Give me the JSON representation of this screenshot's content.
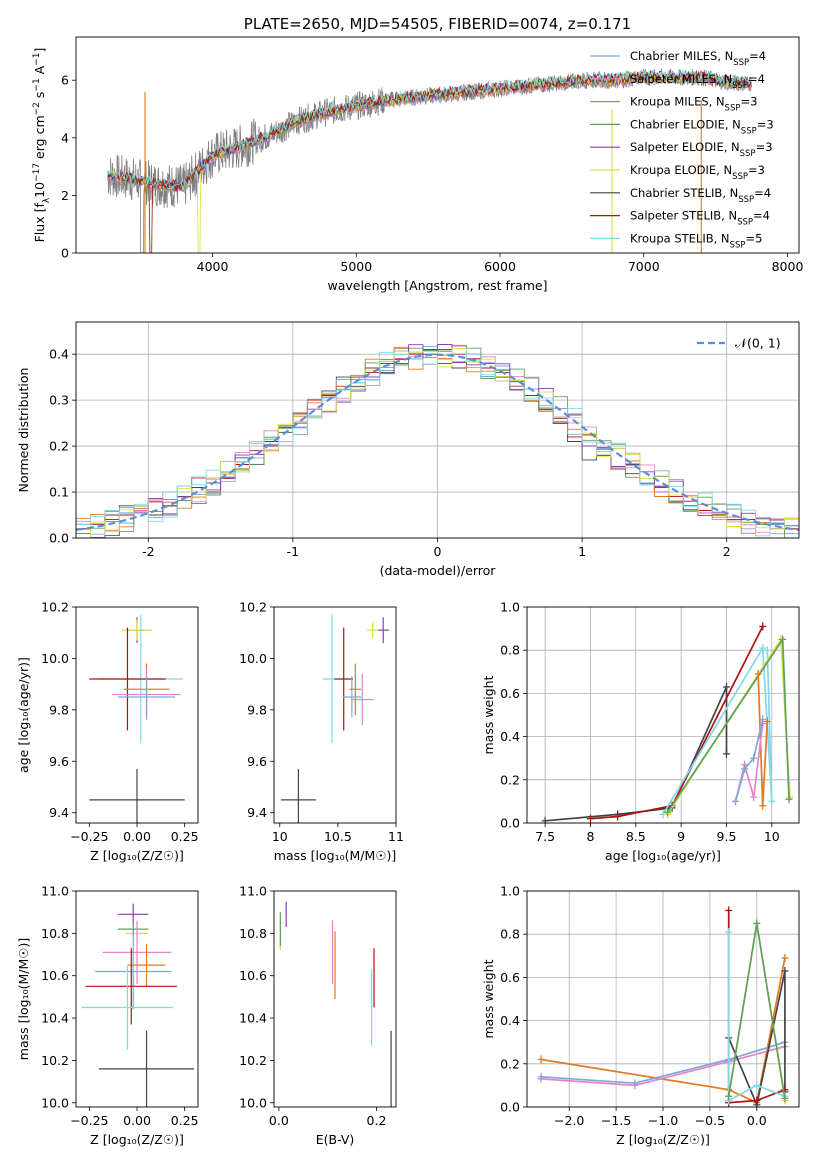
{
  "chart_data": [
    {
      "id": "spectrum",
      "type": "line",
      "title": "PLATE=2650, MJD=54505, FIBERID=0074, z=0.171",
      "xlabel": "wavelength [Angstrom, rest frame]",
      "ylabel_parts": [
        "Flux [f",
        "λ",
        "10",
        "−17",
        " erg cm",
        "−2",
        " s",
        "−1",
        " A",
        "−1",
        "]"
      ],
      "xlim": [
        3050,
        8080
      ],
      "ylim": [
        0,
        7.5
      ],
      "xticks": [
        4000,
        5000,
        6000,
        7000,
        8000
      ],
      "yticks": [
        0,
        2,
        4,
        6
      ],
      "xstart": 3270,
      "xend": 7750,
      "data_anchor": {
        "x": [
          3270,
          3400,
          3600,
          3800,
          4000,
          4200,
          4400,
          4600,
          4800,
          5000,
          5200,
          5400,
          5600,
          5800,
          6000,
          6200,
          6400,
          6600,
          6800,
          7000,
          7200,
          7400,
          7600,
          7750
        ],
        "y": [
          2.7,
          2.6,
          2.4,
          2.3,
          3.4,
          3.7,
          4.1,
          4.6,
          4.9,
          5.1,
          5.3,
          5.4,
          5.5,
          5.6,
          5.7,
          5.8,
          5.9,
          6.0,
          6.0,
          6.1,
          6.1,
          6.1,
          5.9,
          5.9
        ]
      },
      "legend_placement": "right",
      "legend": [
        {
          "text": "Chabrier MILES, N",
          "sub": "SSP",
          "tail": "=4",
          "color": "#7fa8d8"
        },
        {
          "text": "Salpeter MILES, N",
          "sub": "SSP",
          "tail": "=4",
          "color": "#e882c8"
        },
        {
          "text": "Kroupa MILES, N",
          "sub": "SSP",
          "tail": "=3",
          "color": "#e07a1f"
        },
        {
          "text": "Chabrier ELODIE, N",
          "sub": "SSP",
          "tail": "=3",
          "color": "#5fa060"
        },
        {
          "text": "Salpeter ELODIE, N",
          "sub": "SSP",
          "tail": "=3",
          "color": "#8a3fb0"
        },
        {
          "text": "Kroupa ELODIE, N",
          "sub": "SSP",
          "tail": "=3",
          "color": "#d8e040"
        },
        {
          "text": "Chabrier STELIB, N",
          "sub": "SSP",
          "tail": "=4",
          "color": "#444444"
        },
        {
          "text": "Salpeter STELIB, N",
          "sub": "SSP",
          "tail": "=4",
          "color": "#b01010"
        },
        {
          "text": "Kroupa STELIB, N",
          "sub": "SSP",
          "tail": "=5",
          "color": "#80d8e8"
        }
      ]
    },
    {
      "id": "residuals",
      "type": "step",
      "xlabel": "(data-model)/error",
      "ylabel": "Normed distribution",
      "xlim": [
        -2.5,
        2.5
      ],
      "ylim": [
        0,
        0.47
      ],
      "xticks": [
        -2,
        -1,
        0,
        1,
        2
      ],
      "yticks": [
        0.0,
        0.1,
        0.2,
        0.3,
        0.4
      ],
      "grid": true,
      "legend": "𝒩(0, 1)",
      "legend_placement": "top-right",
      "gauss_color": "#5a8fd8",
      "bin_width": 0.1,
      "bin_start": -2.5,
      "series": [
        {
          "color": "#444444",
          "values": [
            0.02,
            0.03,
            0.05,
            0.07,
            0.06,
            0.05,
            0.07,
            0.09,
            0.11,
            0.1,
            0.13,
            0.15,
            0.16,
            0.2,
            0.23,
            0.25,
            0.28,
            0.32,
            0.35,
            0.33,
            0.37,
            0.36,
            0.38,
            0.39,
            0.4,
            0.38,
            0.37,
            0.39,
            0.38,
            0.36,
            0.34,
            0.31,
            0.28,
            0.26,
            0.21,
            0.17,
            0.18,
            0.15,
            0.16,
            0.12,
            0.11,
            0.08,
            0.07,
            0.06,
            0.05,
            0.04,
            0.04,
            0.03,
            0.02,
            0.02
          ]
        },
        {
          "color": "#b01010",
          "values": [
            0.02,
            0.03,
            0.04,
            0.05,
            0.06,
            0.08,
            0.07,
            0.09,
            0.11,
            0.12,
            0.13,
            0.16,
            0.19,
            0.21,
            0.24,
            0.27,
            0.3,
            0.31,
            0.33,
            0.35,
            0.36,
            0.38,
            0.39,
            0.4,
            0.41,
            0.41,
            0.4,
            0.39,
            0.37,
            0.35,
            0.33,
            0.3,
            0.28,
            0.25,
            0.22,
            0.2,
            0.18,
            0.15,
            0.14,
            0.12,
            0.1,
            0.09,
            0.08,
            0.06,
            0.05,
            0.04,
            0.04,
            0.03,
            0.03,
            0.02
          ]
        }
      ]
    },
    {
      "id": "age-vs-z",
      "type": "errorbar",
      "xlabel": "Z [log₁₀(Z/Z☉)]",
      "ylabel": "age  [log₁₀(age/yr)]",
      "xlim": [
        -0.32,
        0.32
      ],
      "ylim": [
        9.36,
        10.2
      ],
      "xticks": [
        -0.25,
        0.0,
        0.25
      ],
      "xtick_labels": [
        "−0.25",
        "0.00",
        "0.25"
      ],
      "yticks": [
        9.4,
        9.6,
        9.8,
        10.0,
        10.2
      ],
      "points": [
        {
          "x": 0.0,
          "y": 10.11,
          "xerr": 0.05,
          "yerr": 0.05,
          "color": "#8a3fb0"
        },
        {
          "x": 0.0,
          "y": 10.11,
          "xerr": 0.08,
          "yerr": 0.04,
          "color": "#d8e040"
        },
        {
          "x": 0.02,
          "y": 9.92,
          "xerr": 0.22,
          "yerr": 0.25,
          "color": "#80d8e8"
        },
        {
          "x": -0.05,
          "y": 9.92,
          "xerr": 0.2,
          "yerr": 0.2,
          "color": "#b01010"
        },
        {
          "x": 0.05,
          "y": 9.88,
          "xerr": 0.12,
          "yerr": 0.1,
          "color": "#e07a1f"
        },
        {
          "x": 0.05,
          "y": 9.86,
          "xerr": 0.18,
          "yerr": 0.1,
          "color": "#e882c8"
        },
        {
          "x": 0.05,
          "y": 9.85,
          "xerr": 0.15,
          "yerr": 0.08,
          "color": "#7fa8d8"
        },
        {
          "x": 0.0,
          "y": 9.45,
          "xerr": 0.25,
          "yerr": 0.12,
          "color": "#444444"
        }
      ]
    },
    {
      "id": "age-vs-mass",
      "type": "errorbar",
      "xlabel": "mass [log₁₀(M/M☉)]",
      "ylabel": "",
      "xlim": [
        9.95,
        11.0
      ],
      "ylim": [
        9.36,
        10.2
      ],
      "xticks": [
        10.0,
        10.5,
        11.0
      ],
      "yticks": [
        9.4,
        9.6,
        9.8,
        10.0,
        10.2
      ],
      "points": [
        {
          "x": 10.89,
          "y": 10.11,
          "xerr": 0.05,
          "yerr": 0.05,
          "color": "#8a3fb0"
        },
        {
          "x": 10.8,
          "y": 10.11,
          "xerr": 0.05,
          "yerr": 0.03,
          "color": "#d8e040"
        },
        {
          "x": 10.45,
          "y": 9.92,
          "xerr": 0.08,
          "yerr": 0.25,
          "color": "#80d8e8"
        },
        {
          "x": 10.55,
          "y": 9.92,
          "xerr": 0.08,
          "yerr": 0.2,
          "color": "#b01010"
        },
        {
          "x": 10.65,
          "y": 9.88,
          "xerr": 0.05,
          "yerr": 0.1,
          "color": "#e07a1f"
        },
        {
          "x": 10.71,
          "y": 9.84,
          "xerr": 0.1,
          "yerr": 0.1,
          "color": "#e882c8"
        },
        {
          "x": 10.62,
          "y": 9.85,
          "xerr": 0.08,
          "yerr": 0.08,
          "color": "#7fa8d8"
        },
        {
          "x": 10.16,
          "y": 9.45,
          "xerr": 0.15,
          "yerr": 0.12,
          "color": "#444444"
        }
      ]
    },
    {
      "id": "mass-weight-vs-age",
      "type": "line",
      "xlabel": "age  [log₁₀(age/yr)]",
      "ylabel": "mass weight",
      "xlim": [
        7.3,
        10.3
      ],
      "ylim": [
        0,
        1.0
      ],
      "xticks": [
        7.5,
        8.0,
        8.5,
        9.0,
        9.5,
        10.0
      ],
      "yticks": [
        0.0,
        0.2,
        0.4,
        0.6,
        0.8,
        1.0
      ],
      "grid": true,
      "series": [
        {
          "color": "#444444",
          "x": [
            7.5,
            8.3,
            8.9,
            9.5,
            9.5
          ],
          "y": [
            0.01,
            0.04,
            0.07,
            0.63,
            0.32
          ]
        },
        {
          "color": "#b01010",
          "x": [
            8.0,
            8.3,
            8.9,
            9.9
          ],
          "y": [
            0.02,
            0.03,
            0.08,
            0.91
          ]
        },
        {
          "color": "#80d8e8",
          "x": [
            8.8,
            9.9,
            10.0,
            9.95
          ],
          "y": [
            0.04,
            0.81,
            0.1,
            0.8
          ]
        },
        {
          "color": "#d8e040",
          "x": [
            8.85,
            10.1,
            10.2
          ],
          "y": [
            0.04,
            0.85,
            0.12
          ]
        },
        {
          "color": "#5fa060",
          "x": [
            8.85,
            10.12,
            10.19
          ],
          "y": [
            0.05,
            0.85,
            0.11
          ]
        },
        {
          "color": "#e07a1f",
          "x": [
            9.85,
            9.9,
            9.95
          ],
          "y": [
            0.69,
            0.08,
            0.47
          ]
        },
        {
          "color": "#e882c8",
          "x": [
            9.6,
            9.7,
            9.8,
            9.9
          ],
          "y": [
            0.1,
            0.27,
            0.12,
            0.46
          ]
        },
        {
          "color": "#7fa8d8",
          "x": [
            9.6,
            9.7,
            9.8,
            9.9
          ],
          "y": [
            0.1,
            0.25,
            0.3,
            0.48
          ]
        }
      ]
    },
    {
      "id": "mass-vs-z",
      "type": "errorbar",
      "xlabel": "Z [log₁₀(Z/Z☉)]",
      "ylabel": "mass [log₁₀(M/M☉)]",
      "xlim": [
        -0.32,
        0.32
      ],
      "ylim": [
        9.98,
        11.0
      ],
      "xticks": [
        -0.25,
        0.0,
        0.25
      ],
      "xtick_labels": [
        "−0.25",
        "0.00",
        "0.25"
      ],
      "yticks": [
        10.0,
        10.2,
        10.4,
        10.6,
        10.8,
        11.0
      ],
      "points": [
        {
          "x": -0.02,
          "y": 10.89,
          "xerr": 0.08,
          "yerr": 0.05,
          "color": "#8a3fb0"
        },
        {
          "x": 0.0,
          "y": 10.8,
          "xerr": 0.06,
          "yerr": 0.03,
          "color": "#d8e040"
        },
        {
          "x": -0.02,
          "y": 10.82,
          "xerr": 0.08,
          "yerr": 0.03,
          "color": "#5fa060"
        },
        {
          "x": 0.0,
          "y": 10.71,
          "xerr": 0.18,
          "yerr": 0.15,
          "color": "#e882c8"
        },
        {
          "x": 0.05,
          "y": 10.65,
          "xerr": 0.1,
          "yerr": 0.1,
          "color": "#e07a1f"
        },
        {
          "x": -0.02,
          "y": 10.62,
          "xerr": 0.2,
          "yerr": 0.18,
          "color": "#7fa8d8"
        },
        {
          "x": -0.03,
          "y": 10.55,
          "xerr": 0.24,
          "yerr": 0.18,
          "color": "#b01010"
        },
        {
          "x": -0.05,
          "y": 10.45,
          "xerr": 0.24,
          "yerr": 0.2,
          "color": "#80d8e8"
        },
        {
          "x": 0.05,
          "y": 10.16,
          "xerr": 0.25,
          "yerr": 0.18,
          "color": "#444444"
        }
      ]
    },
    {
      "id": "mass-vs-ebv",
      "type": "errorbar",
      "xlabel": "E(B-V)",
      "ylabel": "",
      "xlim": [
        -0.01,
        0.24
      ],
      "ylim": [
        9.98,
        11.0
      ],
      "xticks": [
        0.0,
        0.2
      ],
      "xtick_labels": [
        "0.0",
        "0.2"
      ],
      "yticks": [
        10.0,
        10.2,
        10.4,
        10.6,
        10.8,
        11.0
      ],
      "points": [
        {
          "x": 0.015,
          "y": 10.89,
          "xerr": 0,
          "yerr": 0.06,
          "color": "#8a3fb0"
        },
        {
          "x": 0.003,
          "y": 10.8,
          "xerr": 0,
          "yerr": 0.08,
          "color": "#d8e040"
        },
        {
          "x": 0.003,
          "y": 10.82,
          "xerr": 0,
          "yerr": 0.08,
          "color": "#5fa060"
        },
        {
          "x": 0.11,
          "y": 10.71,
          "xerr": 0,
          "yerr": 0.15,
          "color": "#e882c8"
        },
        {
          "x": 0.115,
          "y": 10.65,
          "xerr": 0,
          "yerr": 0.16,
          "color": "#e07a1f"
        },
        {
          "x": 0.195,
          "y": 10.59,
          "xerr": 0,
          "yerr": 0.14,
          "color": "#b01010"
        },
        {
          "x": 0.19,
          "y": 10.45,
          "xerr": 0,
          "yerr": 0.18,
          "color": "#80d8e8"
        },
        {
          "x": 0.23,
          "y": 10.16,
          "xerr": 0,
          "yerr": 0.18,
          "color": "#444444"
        }
      ]
    },
    {
      "id": "mass-weight-vs-z",
      "type": "line",
      "xlabel": "Z [log₁₀(Z/Z☉)]",
      "ylabel": "mass weight",
      "xlim": [
        -2.45,
        0.45
      ],
      "ylim": [
        0,
        1.0
      ],
      "xticks": [
        -2.0,
        -1.5,
        -1.0,
        -0.5,
        0.0
      ],
      "xtick_labels": [
        "−2.0",
        "−1.5",
        "−1.0",
        "−0.5",
        "0.0"
      ],
      "yticks": [
        0.0,
        0.2,
        0.4,
        0.6,
        0.8,
        1.0
      ],
      "grid": true,
      "series": [
        {
          "color": "#e07a1f",
          "x": [
            -2.3,
            -0.3,
            0.0,
            0.3
          ],
          "y": [
            0.22,
            0.08,
            0.02,
            0.69
          ]
        },
        {
          "color": "#e882c8",
          "x": [
            -2.3,
            -1.3,
            -0.3,
            0.3
          ],
          "y": [
            0.13,
            0.1,
            0.21,
            0.28
          ]
        },
        {
          "color": "#7fa8d8",
          "x": [
            -2.3,
            -1.3,
            -0.3,
            0.3
          ],
          "y": [
            0.14,
            0.11,
            0.22,
            0.3
          ]
        },
        {
          "color": "#444444",
          "x": [
            -0.3,
            0.0,
            0.3,
            0.3
          ],
          "y": [
            0.32,
            0.01,
            0.63,
            0.07
          ]
        },
        {
          "color": "#b01010",
          "x": [
            -0.3,
            -0.3,
            0.0,
            0.3
          ],
          "y": [
            0.91,
            0.02,
            0.03,
            0.08
          ]
        },
        {
          "color": "#80d8e8",
          "x": [
            -0.3,
            -0.3,
            0.0,
            0.3
          ],
          "y": [
            0.81,
            0.03,
            0.1,
            0.05
          ]
        },
        {
          "color": "#d8e040",
          "x": [
            -0.3,
            0.0,
            0.3
          ],
          "y": [
            0.05,
            0.85,
            0.03
          ]
        },
        {
          "color": "#5fa060",
          "x": [
            -0.3,
            0.0,
            0.3
          ],
          "y": [
            0.05,
            0.85,
            0.04
          ]
        }
      ]
    }
  ]
}
